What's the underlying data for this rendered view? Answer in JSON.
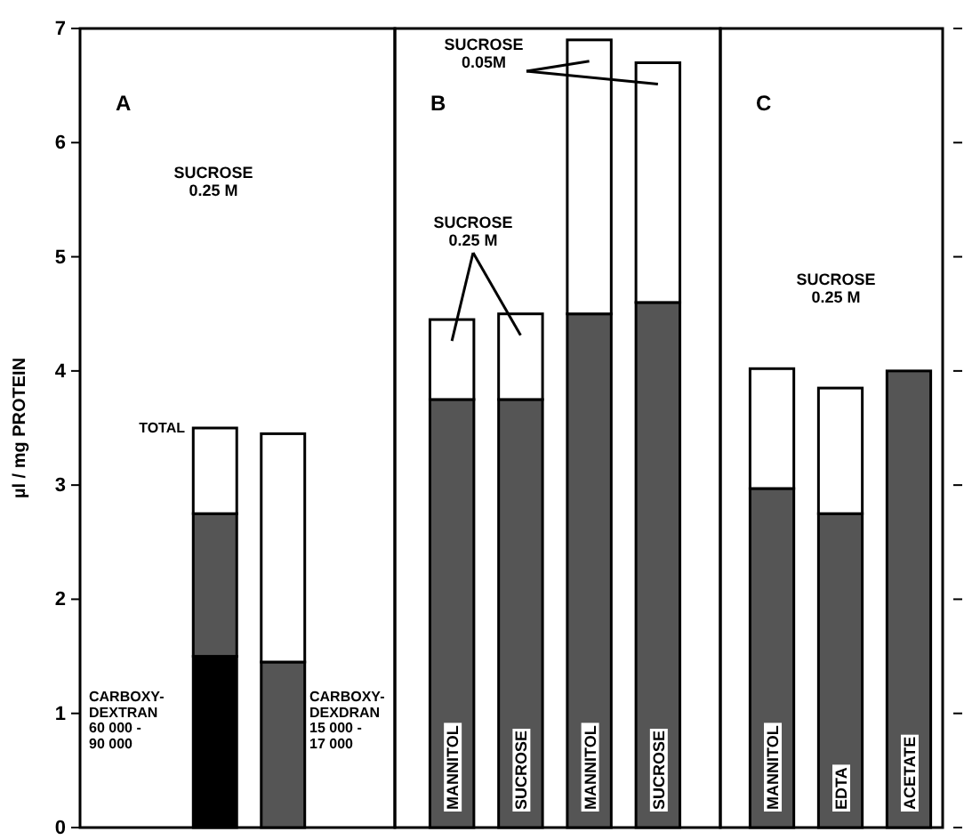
{
  "chart_data": [
    {
      "type": "bar",
      "title": "A",
      "ylabel": "µl / mg PROTEIN",
      "stacked": true,
      "categories": [
        null,
        null
      ],
      "ylim": [
        0,
        7
      ],
      "yticks": [
        0,
        1,
        2,
        3,
        4,
        5,
        6,
        7
      ],
      "series": [
        {
          "color": "#000000",
          "values": [
            1.5,
            null
          ]
        },
        {
          "color": "#555555",
          "values": [
            1.25,
            1.45
          ]
        },
        {
          "color": "#ffffff",
          "values": [
            0.75,
            2.0
          ]
        }
      ],
      "annotations": [
        "SUCROSE\n0.25 M",
        "TOTAL",
        "CARBOXY-\nDEXTRAN\n60 000 -\n90 000",
        "CARBOXY-\nDEXDRAN\n15 000 -\n17 000"
      ]
    },
    {
      "type": "bar",
      "title": "B",
      "stacked": true,
      "categories": [
        "MANNITOL",
        "SUCROSE",
        "MANNITOL",
        "SUCROSE"
      ],
      "ylim": [
        0,
        7
      ],
      "tick_labels": false,
      "series": [
        {
          "color": "#555555",
          "values": [
            3.75,
            3.75,
            4.5,
            4.6
          ]
        },
        {
          "color": "#ffffff",
          "values": [
            0.7,
            0.75,
            2.4,
            2.1
          ]
        }
      ],
      "annotations": [
        "SUCROSE\n0.25 M",
        "SUCROSE\n0.05M"
      ]
    },
    {
      "type": "bar",
      "title": "C",
      "stacked": true,
      "categories": [
        "MANNITOL",
        "EDTA",
        "ACETATE"
      ],
      "ylim": [
        0,
        7
      ],
      "yticks": [
        0,
        1,
        2,
        3,
        4,
        5,
        6,
        7
      ],
      "tick_labels": false,
      "series": [
        {
          "color": "#555555",
          "values": [
            2.97,
            2.75,
            4.0
          ]
        },
        {
          "color": "#ffffff",
          "values": [
            1.05,
            1.1,
            null
          ]
        }
      ],
      "annotations": [
        "SUCROSE\n0.25 M"
      ]
    }
  ]
}
